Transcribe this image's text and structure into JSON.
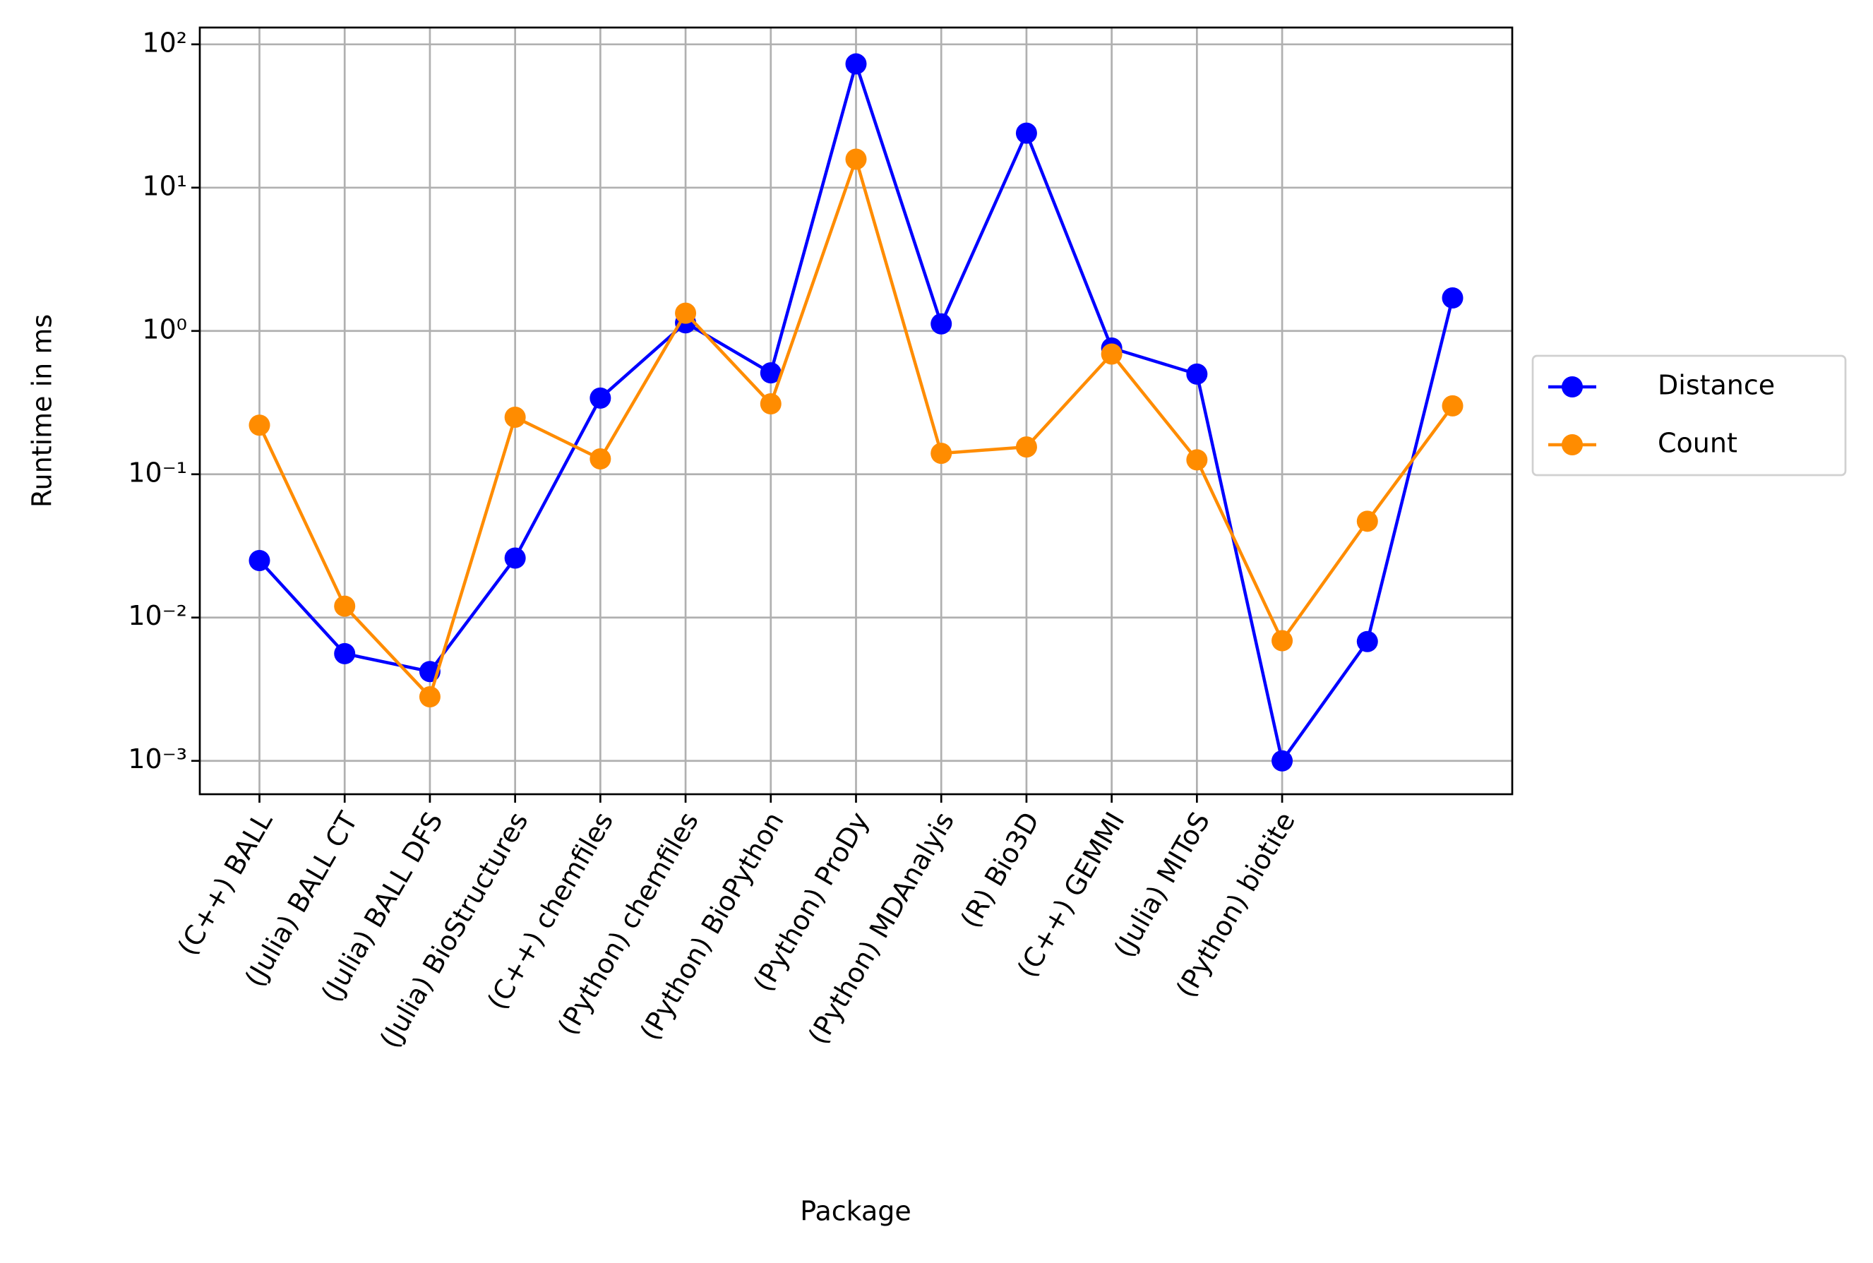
{
  "chart_data": {
    "type": "line",
    "x_label": "Package",
    "y_label": "Runtime in ms",
    "categories": [
      "(C++) BALL",
      "(Julia) BALL CT",
      "(Julia) BALL DFS",
      "(Julia) BioStructures",
      "(C++) chemfiles",
      "(Python) chemfiles",
      "(Python) BioPython",
      "(Python) ProDy",
      "(Python) MDAnalyis",
      "(R) Bio3D",
      "(C++) GEMMI",
      "(Julia) MIToS",
      "(Python) biotite",
      null,
      null
    ],
    "series": [
      {
        "name": "Distance",
        "color": "#0000ff",
        "values": [
          0.025,
          0.0056,
          0.0042,
          0.026,
          0.34,
          1.14,
          0.51,
          73,
          1.12,
          24,
          0.76,
          0.5,
          0.001,
          0.0068,
          1.7
        ]
      },
      {
        "name": "Count",
        "color": "#ff8c00",
        "values": [
          0.22,
          0.012,
          0.0028,
          0.25,
          0.128,
          1.33,
          0.31,
          15.8,
          0.14,
          0.155,
          0.69,
          0.126,
          0.0069,
          0.047,
          0.3
        ]
      }
    ],
    "log_y": true,
    "ylim": [
      0.000585,
      131
    ],
    "yticks": [
      {
        "value": 0.001,
        "label": "10⁻³"
      },
      {
        "value": 0.01,
        "label": "10⁻²"
      },
      {
        "value": 0.1,
        "label": "10⁻¹"
      },
      {
        "value": 1,
        "label": "10⁰"
      },
      {
        "value": 10,
        "label": "10¹"
      },
      {
        "value": 100,
        "label": "10²"
      }
    ],
    "grid": true,
    "legend": "right"
  }
}
